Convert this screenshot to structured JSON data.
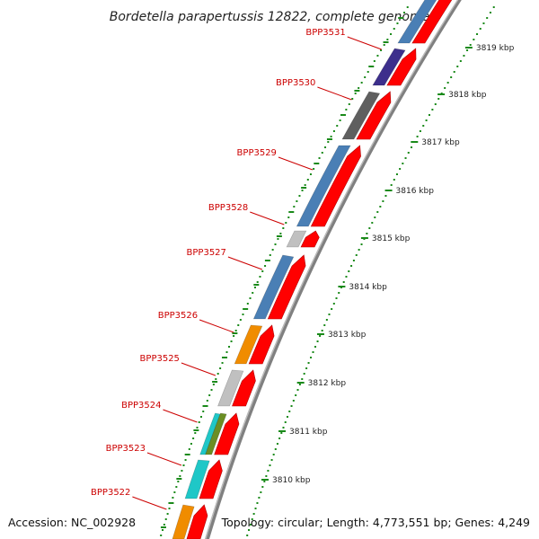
{
  "title": "Bordetella parapertussis 12822, complete genome",
  "footer": {
    "accession": "Accession: NC_002928",
    "topology": "Topology: circular; Length: 4,773,551 bp; Genes: 4,249"
  },
  "ruler": [
    "3810 kbp",
    "3811 kbp",
    "3812 kbp",
    "3813 kbp",
    "3814 kbp",
    "3815 kbp",
    "3816 kbp",
    "3817 kbp",
    "3818 kbp",
    "3819 kbp"
  ],
  "genes": [
    {
      "name": "BPP3531",
      "color": "#3d2f8c"
    },
    {
      "name": "BPP3530",
      "color": "#5f5f5f"
    },
    {
      "name": "BPP3529",
      "color": "#4a7fb5"
    },
    {
      "name": "BPP3528",
      "color": "#c0c0c0"
    },
    {
      "name": "BPP3527",
      "color": "#4a7fb5"
    },
    {
      "name": "BPP3526",
      "color": "#f08c00"
    },
    {
      "name": "BPP3525",
      "color": "#c0c0c0"
    },
    {
      "name": "BPP3524",
      "color": "#1fc7c7"
    },
    {
      "name": "BPP3523",
      "color": "#1fc7c7"
    },
    {
      "name": "BPP3522",
      "color": "#f08c00"
    }
  ],
  "colors": {
    "cds": "#ff0000",
    "backbone": "#808080",
    "ruler_ticks": "#1a8a1a",
    "labels": "#cc0000"
  }
}
